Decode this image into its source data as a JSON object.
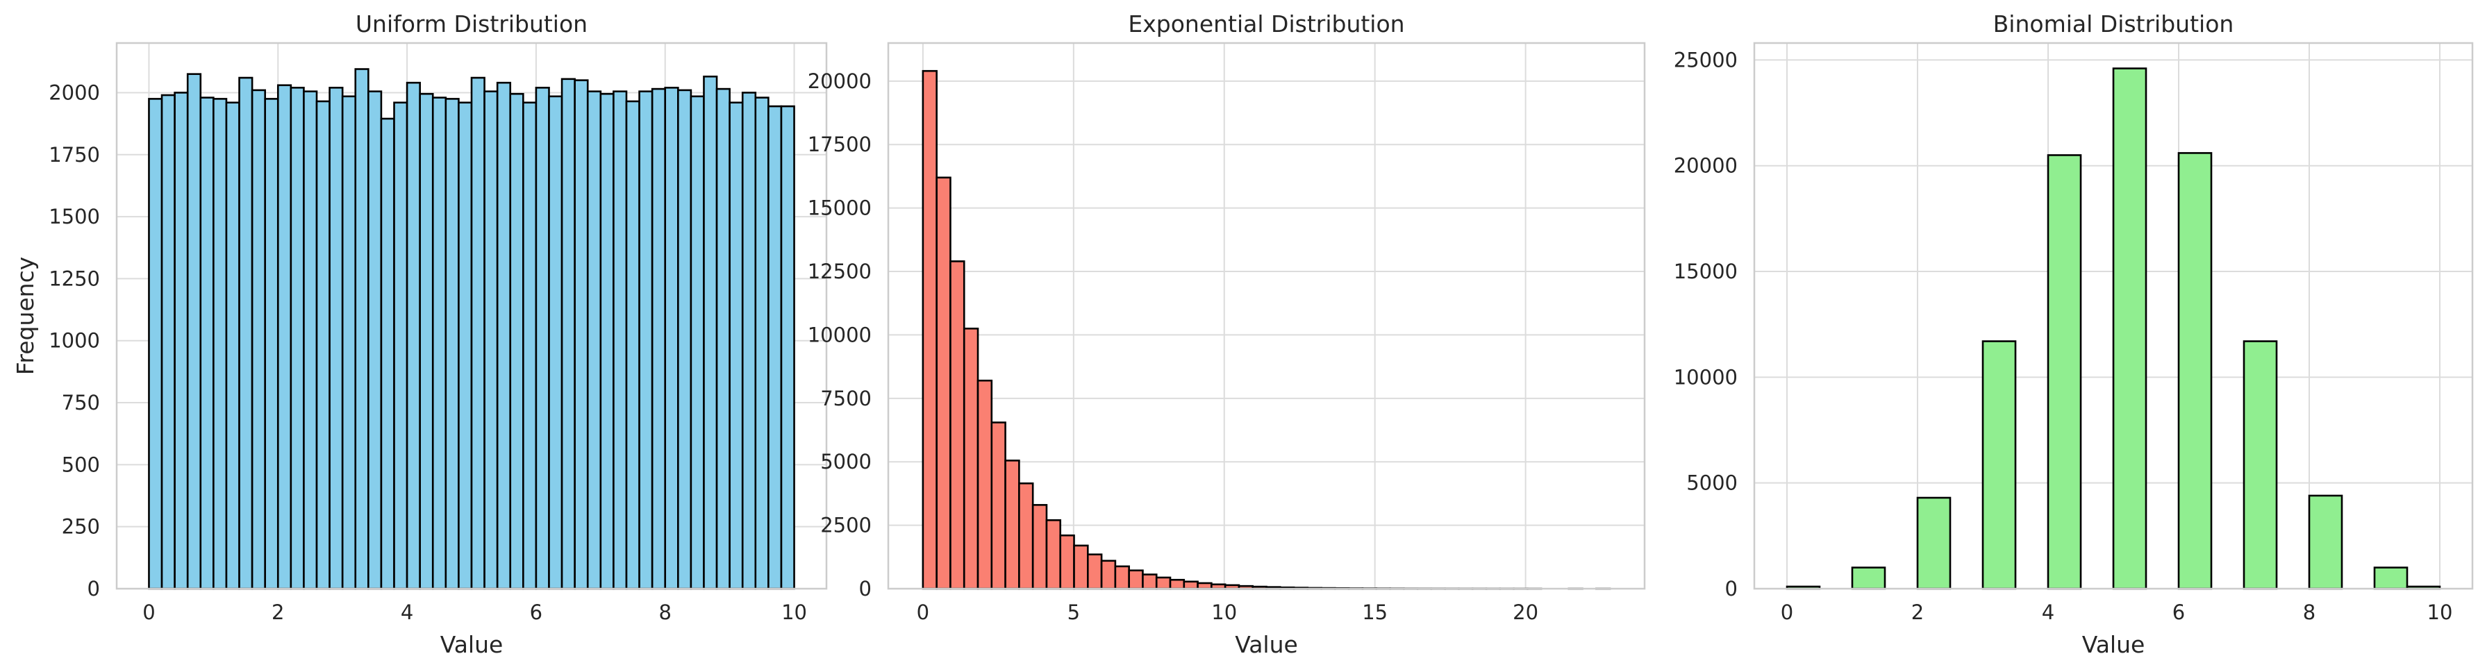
{
  "colors": {
    "uniform": "#87ceeb",
    "exponential": "#fa8072",
    "binomial": "#90ee90",
    "edge": "#000000",
    "grid": "#dcdcdc"
  },
  "chart_data": [
    {
      "type": "bar",
      "title": "Uniform Distribution",
      "xlabel": "Value",
      "ylabel": "Frequency",
      "xlim": [
        -0.5,
        10.5
      ],
      "ylim": [
        0,
        2200
      ],
      "grid": true,
      "x_ticks": [
        0,
        2,
        4,
        6,
        8,
        10
      ],
      "y_ticks": [
        0,
        250,
        500,
        750,
        1000,
        1250,
        1500,
        1750,
        2000
      ],
      "bin_edges": {
        "start": 0,
        "width": 0.2
      },
      "values": [
        1975,
        1990,
        2000,
        2075,
        1980,
        1975,
        1960,
        2060,
        2010,
        1975,
        2030,
        2020,
        2005,
        1965,
        2020,
        1985,
        2095,
        2005,
        1895,
        1960,
        2040,
        1995,
        1980,
        1975,
        1960,
        2060,
        2005,
        2040,
        1995,
        1960,
        2020,
        1985,
        2055,
        2050,
        2005,
        1995,
        2005,
        1965,
        2005,
        2015,
        2020,
        2010,
        1985,
        2065,
        2015,
        1960,
        2000,
        1980,
        1945,
        1945
      ]
    },
    {
      "type": "bar",
      "title": "Exponential Distribution",
      "xlabel": "Value",
      "ylabel": "",
      "xlim": [
        -1.15,
        23.95
      ],
      "ylim": [
        0,
        21500
      ],
      "grid": true,
      "x_ticks": [
        0,
        5,
        10,
        15,
        20
      ],
      "y_ticks": [
        0,
        2500,
        5000,
        7500,
        10000,
        12500,
        15000,
        17500,
        20000
      ],
      "bin_edges": {
        "start": 0,
        "width": 0.456
      },
      "values": [
        20400,
        16200,
        12900,
        10250,
        8200,
        6550,
        5050,
        4150,
        3300,
        2700,
        2100,
        1700,
        1350,
        1100,
        880,
        720,
        560,
        440,
        350,
        280,
        220,
        170,
        140,
        105,
        80,
        65,
        50,
        40,
        30,
        25,
        20,
        15,
        12,
        10,
        8,
        6,
        5,
        4,
        3,
        2,
        2,
        1,
        1,
        1,
        1,
        0,
        0,
        1,
        0,
        1
      ]
    },
    {
      "type": "bar",
      "title": "Binomial Distribution",
      "xlabel": "Value",
      "ylabel": "",
      "xlim": [
        -0.5,
        10.5
      ],
      "ylim": [
        0,
        25800
      ],
      "grid": true,
      "x_ticks": [
        0,
        2,
        4,
        6,
        8,
        10
      ],
      "y_ticks": [
        0,
        5000,
        10000,
        15000,
        20000,
        25000
      ],
      "bars": [
        {
          "x0": 0.0,
          "x1": 0.5,
          "value": 100
        },
        {
          "x0": 1.0,
          "x1": 1.5,
          "value": 1000
        },
        {
          "x0": 2.0,
          "x1": 2.5,
          "value": 4300
        },
        {
          "x0": 3.0,
          "x1": 3.5,
          "value": 11700
        },
        {
          "x0": 4.0,
          "x1": 4.5,
          "value": 20500
        },
        {
          "x0": 5.0,
          "x1": 5.5,
          "value": 24600
        },
        {
          "x0": 6.0,
          "x1": 6.5,
          "value": 20600
        },
        {
          "x0": 7.0,
          "x1": 7.5,
          "value": 11700
        },
        {
          "x0": 8.0,
          "x1": 8.5,
          "value": 4400
        },
        {
          "x0": 9.0,
          "x1": 9.5,
          "value": 1000
        },
        {
          "x0": 9.5,
          "x1": 10.0,
          "value": 100
        }
      ]
    }
  ]
}
